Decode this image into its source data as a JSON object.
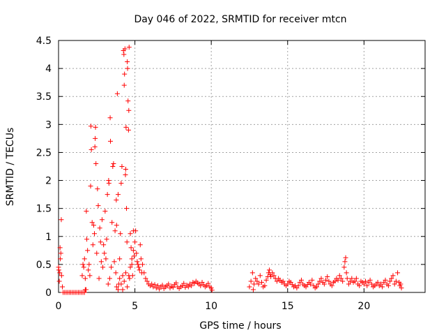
{
  "chart_data": {
    "type": "scatter",
    "title": "Day 046 of 2022, SRMTID for receiver mtcn",
    "xlabel": "GPS time / hours",
    "ylabel": "SRMTID / TECUs",
    "xlim": [
      0,
      24
    ],
    "ylim": [
      0,
      4.5
    ],
    "grid": true,
    "marker": "plus",
    "x_ticks": [
      0,
      5,
      10,
      15,
      20
    ],
    "y_ticks": [
      0,
      0.5,
      1,
      1.5,
      2,
      2.5,
      3,
      3.5,
      4,
      4.5
    ],
    "y_tick_labels": [
      "0",
      "0.5",
      "1",
      "1.5",
      "2",
      "2.5",
      "3",
      "3.5",
      "4",
      "4.5"
    ],
    "series": [
      {
        "name": "SRMTID",
        "color": "#ff0000",
        "points": [
          [
            0.0,
            0.45
          ],
          [
            0.02,
            0.4
          ],
          [
            0.05,
            0.2
          ],
          [
            0.08,
            0.35
          ],
          [
            0.1,
            0.8
          ],
          [
            0.12,
            0.6
          ],
          [
            0.15,
            0.7
          ],
          [
            0.18,
            1.3
          ],
          [
            0.2,
            0.3
          ],
          [
            0.25,
            0.1
          ],
          [
            0.3,
            0.0
          ],
          [
            0.4,
            0.0
          ],
          [
            0.5,
            0.0
          ],
          [
            0.6,
            0.0
          ],
          [
            0.7,
            0.0
          ],
          [
            0.8,
            0.0
          ],
          [
            0.9,
            0.0
          ],
          [
            1.0,
            0.0
          ],
          [
            1.1,
            0.0
          ],
          [
            1.2,
            0.0
          ],
          [
            1.3,
            0.0
          ],
          [
            1.4,
            0.0
          ],
          [
            1.5,
            0.0
          ],
          [
            1.6,
            0.0
          ],
          [
            1.7,
            0.0
          ],
          [
            1.75,
            0.05
          ],
          [
            1.55,
            0.3
          ],
          [
            1.6,
            0.5
          ],
          [
            1.65,
            0.45
          ],
          [
            1.7,
            0.6
          ],
          [
            1.75,
            0.25
          ],
          [
            1.8,
            0.05
          ],
          [
            1.82,
            1.45
          ],
          [
            1.85,
            0.95
          ],
          [
            1.9,
            0.75
          ],
          [
            1.95,
            0.4
          ],
          [
            2.0,
            0.5
          ],
          [
            2.05,
            0.3
          ],
          [
            2.1,
            1.9
          ],
          [
            2.12,
            2.97
          ],
          [
            2.15,
            2.55
          ],
          [
            2.2,
            1.25
          ],
          [
            2.25,
            0.85
          ],
          [
            2.3,
            1.2
          ],
          [
            2.35,
            1.05
          ],
          [
            2.38,
            2.6
          ],
          [
            2.4,
            2.75
          ],
          [
            2.42,
            2.95
          ],
          [
            2.45,
            2.3
          ],
          [
            2.5,
            0.7
          ],
          [
            2.55,
            1.85
          ],
          [
            2.6,
            1.55
          ],
          [
            2.65,
            0.25
          ],
          [
            2.7,
            1.15
          ],
          [
            2.75,
            0.9
          ],
          [
            2.8,
            0.55
          ],
          [
            2.85,
            1.3
          ],
          [
            2.9,
            0.45
          ],
          [
            2.95,
            0.85
          ],
          [
            3.0,
            0.7
          ],
          [
            3.05,
            1.45
          ],
          [
            3.1,
            0.6
          ],
          [
            3.15,
            0.95
          ],
          [
            3.2,
            1.75
          ],
          [
            3.25,
            0.15
          ],
          [
            3.28,
            2.0
          ],
          [
            3.3,
            1.95
          ],
          [
            3.35,
            0.25
          ],
          [
            3.38,
            3.12
          ],
          [
            3.4,
            2.7
          ],
          [
            3.45,
            0.45
          ],
          [
            3.5,
            1.25
          ],
          [
            3.55,
            2.25
          ],
          [
            3.6,
            2.3
          ],
          [
            3.65,
            0.55
          ],
          [
            3.7,
            1.1
          ],
          [
            3.75,
            0.35
          ],
          [
            3.78,
            1.65
          ],
          [
            3.8,
            1.2
          ],
          [
            3.85,
            3.55
          ],
          [
            3.9,
            1.75
          ],
          [
            3.95,
            0.15
          ],
          [
            4.0,
            0.6
          ],
          [
            4.05,
            1.05
          ],
          [
            4.1,
            1.95
          ],
          [
            4.15,
            2.25
          ],
          [
            4.2,
            0.3
          ],
          [
            4.25,
            4.32
          ],
          [
            4.28,
            4.25
          ],
          [
            4.3,
            3.7
          ],
          [
            4.32,
            3.9
          ],
          [
            4.35,
            4.35
          ],
          [
            4.38,
            2.1
          ],
          [
            4.4,
            2.2
          ],
          [
            4.42,
            2.95
          ],
          [
            4.45,
            1.5
          ],
          [
            4.48,
            0.9
          ],
          [
            4.5,
            4.12
          ],
          [
            4.52,
            4.0
          ],
          [
            4.55,
            3.42
          ],
          [
            4.58,
            2.9
          ],
          [
            4.6,
            3.25
          ],
          [
            4.62,
            4.38
          ],
          [
            4.65,
            0.25
          ],
          [
            4.7,
            1.05
          ],
          [
            4.75,
            0.8
          ],
          [
            4.8,
            0.5
          ],
          [
            4.85,
            0.3
          ],
          [
            4.9,
            1.1
          ],
          [
            4.95,
            0.65
          ],
          [
            3.8,
            0.1
          ],
          [
            3.9,
            0.05
          ],
          [
            4.0,
            0.25
          ],
          [
            4.1,
            0.15
          ],
          [
            4.2,
            0.05
          ],
          [
            4.3,
            0.2
          ],
          [
            4.4,
            0.35
          ],
          [
            4.5,
            0.1
          ],
          [
            4.6,
            0.3
          ],
          [
            4.7,
            0.45
          ],
          [
            4.8,
            0.6
          ],
          [
            4.9,
            0.75
          ],
          [
            5.0,
            0.9
          ],
          [
            5.05,
            1.1
          ],
          [
            5.1,
            0.7
          ],
          [
            5.15,
            0.55
          ],
          [
            5.2,
            0.5
          ],
          [
            5.25,
            0.45
          ],
          [
            5.3,
            0.4
          ],
          [
            5.35,
            0.85
          ],
          [
            5.4,
            0.6
          ],
          [
            5.45,
            0.35
          ],
          [
            5.5,
            0.5
          ],
          [
            5.6,
            0.35
          ],
          [
            5.7,
            0.25
          ],
          [
            5.8,
            0.2
          ],
          [
            5.9,
            0.15
          ],
          [
            6.0,
            0.12
          ],
          [
            6.1,
            0.15
          ],
          [
            6.2,
            0.1
          ],
          [
            6.3,
            0.14
          ],
          [
            6.4,
            0.08
          ],
          [
            6.5,
            0.12
          ],
          [
            6.6,
            0.06
          ],
          [
            6.7,
            0.1
          ],
          [
            6.8,
            0.13
          ],
          [
            6.9,
            0.07
          ],
          [
            7.0,
            0.1
          ],
          [
            7.1,
            0.12
          ],
          [
            7.2,
            0.15
          ],
          [
            7.3,
            0.08
          ],
          [
            7.4,
            0.11
          ],
          [
            7.5,
            0.09
          ],
          [
            7.6,
            0.14
          ],
          [
            7.7,
            0.17
          ],
          [
            7.8,
            0.1
          ],
          [
            7.9,
            0.07
          ],
          [
            8.0,
            0.1
          ],
          [
            8.1,
            0.12
          ],
          [
            8.2,
            0.16
          ],
          [
            8.3,
            0.09
          ],
          [
            8.4,
            0.13
          ],
          [
            8.5,
            0.1
          ],
          [
            8.6,
            0.15
          ],
          [
            8.7,
            0.12
          ],
          [
            8.8,
            0.18
          ],
          [
            8.9,
            0.16
          ],
          [
            9.0,
            0.2
          ],
          [
            9.1,
            0.17
          ],
          [
            9.2,
            0.15
          ],
          [
            9.3,
            0.12
          ],
          [
            9.4,
            0.18
          ],
          [
            9.5,
            0.14
          ],
          [
            9.6,
            0.1
          ],
          [
            9.7,
            0.12
          ],
          [
            9.8,
            0.16
          ],
          [
            9.9,
            0.1
          ],
          [
            10.0,
            0.08
          ],
          [
            10.05,
            0.04
          ],
          [
            12.5,
            0.1
          ],
          [
            12.6,
            0.2
          ],
          [
            12.7,
            0.35
          ],
          [
            12.75,
            0.05
          ],
          [
            12.8,
            0.15
          ],
          [
            12.9,
            0.25
          ],
          [
            13.0,
            0.2
          ],
          [
            13.1,
            0.15
          ],
          [
            13.2,
            0.3
          ],
          [
            13.3,
            0.18
          ],
          [
            13.4,
            0.1
          ],
          [
            13.5,
            0.12
          ],
          [
            13.6,
            0.22
          ],
          [
            13.7,
            0.28
          ],
          [
            13.75,
            0.35
          ],
          [
            13.8,
            0.4
          ],
          [
            13.85,
            0.32
          ],
          [
            13.9,
            0.28
          ],
          [
            14.0,
            0.35
          ],
          [
            14.1,
            0.3
          ],
          [
            14.2,
            0.25
          ],
          [
            14.3,
            0.2
          ],
          [
            14.4,
            0.25
          ],
          [
            14.5,
            0.22
          ],
          [
            14.6,
            0.18
          ],
          [
            14.7,
            0.2
          ],
          [
            14.8,
            0.15
          ],
          [
            14.9,
            0.12
          ],
          [
            15.0,
            0.15
          ],
          [
            15.1,
            0.2
          ],
          [
            15.2,
            0.18
          ],
          [
            15.3,
            0.14
          ],
          [
            15.4,
            0.1
          ],
          [
            15.5,
            0.12
          ],
          [
            15.6,
            0.08
          ],
          [
            15.7,
            0.12
          ],
          [
            15.8,
            0.18
          ],
          [
            15.9,
            0.22
          ],
          [
            16.0,
            0.15
          ],
          [
            16.1,
            0.12
          ],
          [
            16.2,
            0.1
          ],
          [
            16.3,
            0.14
          ],
          [
            16.4,
            0.18
          ],
          [
            16.5,
            0.15
          ],
          [
            16.6,
            0.22
          ],
          [
            16.7,
            0.12
          ],
          [
            16.8,
            0.08
          ],
          [
            16.9,
            0.1
          ],
          [
            17.0,
            0.15
          ],
          [
            17.1,
            0.2
          ],
          [
            17.2,
            0.25
          ],
          [
            17.3,
            0.18
          ],
          [
            17.4,
            0.15
          ],
          [
            17.5,
            0.22
          ],
          [
            17.6,
            0.28
          ],
          [
            17.7,
            0.2
          ],
          [
            17.8,
            0.15
          ],
          [
            17.9,
            0.12
          ],
          [
            18.0,
            0.18
          ],
          [
            18.1,
            0.2
          ],
          [
            18.2,
            0.25
          ],
          [
            18.3,
            0.22
          ],
          [
            18.4,
            0.3
          ],
          [
            18.5,
            0.25
          ],
          [
            18.6,
            0.2
          ],
          [
            18.7,
            0.45
          ],
          [
            18.75,
            0.55
          ],
          [
            18.8,
            0.62
          ],
          [
            18.85,
            0.35
          ],
          [
            18.9,
            0.25
          ],
          [
            19.0,
            0.15
          ],
          [
            19.1,
            0.2
          ],
          [
            19.2,
            0.25
          ],
          [
            19.3,
            0.18
          ],
          [
            19.4,
            0.2
          ],
          [
            19.5,
            0.25
          ],
          [
            19.6,
            0.15
          ],
          [
            19.7,
            0.12
          ],
          [
            19.8,
            0.2
          ],
          [
            19.9,
            0.18
          ],
          [
            20.0,
            0.15
          ],
          [
            20.1,
            0.2
          ],
          [
            20.2,
            0.12
          ],
          [
            20.3,
            0.18
          ],
          [
            20.4,
            0.22
          ],
          [
            20.5,
            0.15
          ],
          [
            20.6,
            0.1
          ],
          [
            20.7,
            0.12
          ],
          [
            20.8,
            0.15
          ],
          [
            20.9,
            0.18
          ],
          [
            21.0,
            0.12
          ],
          [
            21.1,
            0.15
          ],
          [
            21.2,
            0.1
          ],
          [
            21.3,
            0.18
          ],
          [
            21.4,
            0.22
          ],
          [
            21.5,
            0.15
          ],
          [
            21.6,
            0.12
          ],
          [
            21.7,
            0.2
          ],
          [
            21.8,
            0.25
          ],
          [
            21.9,
            0.3
          ],
          [
            22.0,
            0.15
          ],
          [
            22.1,
            0.2
          ],
          [
            22.2,
            0.35
          ],
          [
            22.3,
            0.18
          ],
          [
            22.35,
            0.12
          ],
          [
            22.4,
            0.15
          ],
          [
            22.45,
            0.08
          ]
        ]
      }
    ]
  }
}
